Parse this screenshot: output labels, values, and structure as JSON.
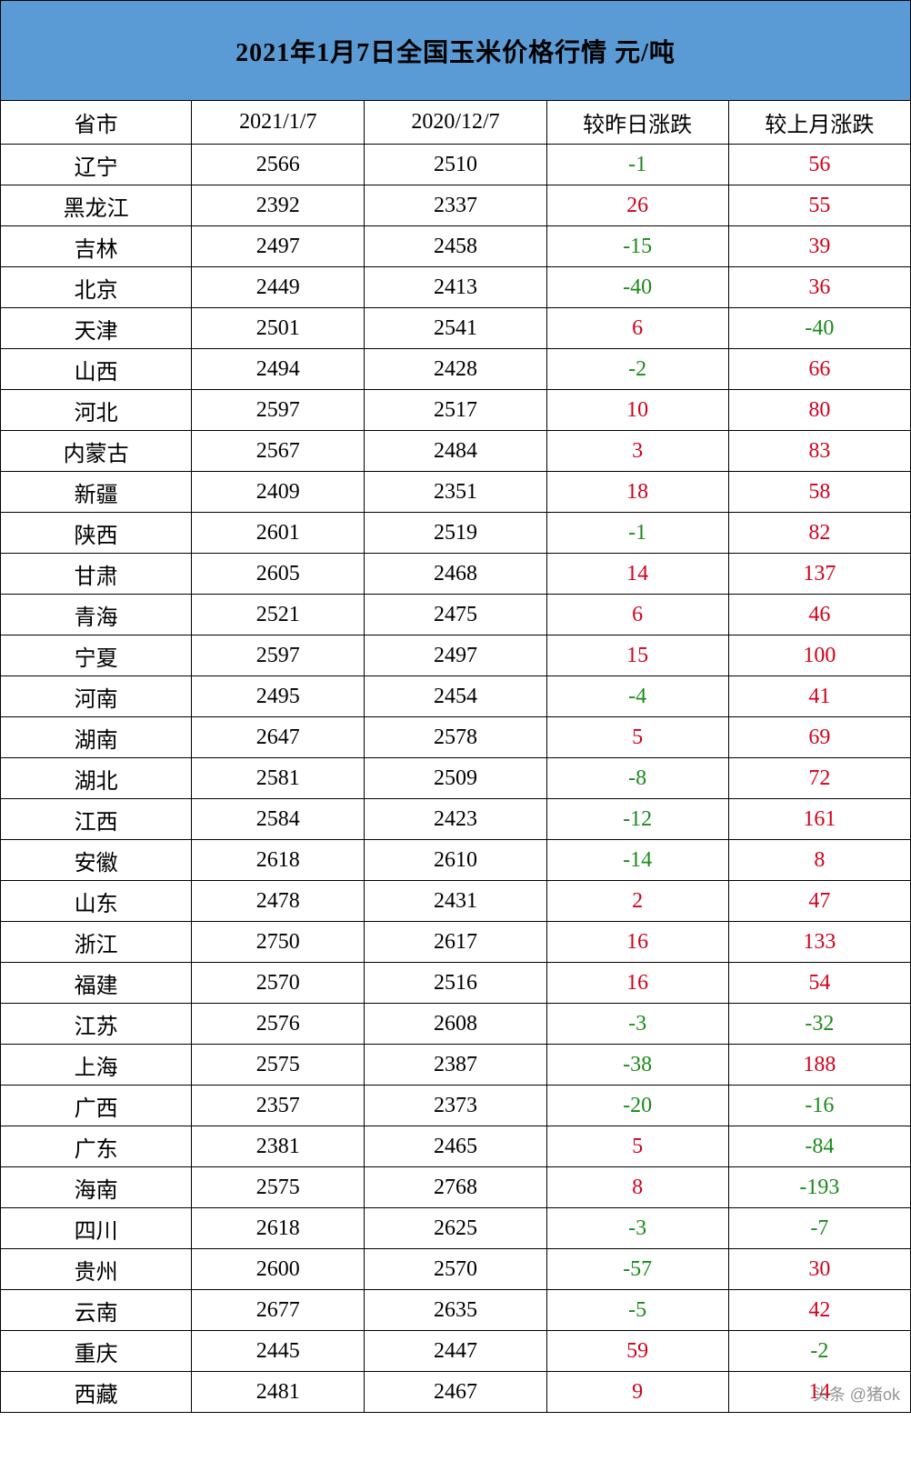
{
  "title": "2021年1月7日全国玉米价格行情  元/吨",
  "columns": [
    "省市",
    "2021/1/7",
    "2020/12/7",
    "较昨日涨跌",
    "较上月涨跌"
  ],
  "column_widths": [
    "21%",
    "19%",
    "20%",
    "20%",
    "20%"
  ],
  "colors": {
    "header_bg": "#5b9bd5",
    "positive": "#d0021b",
    "negative": "#1a8a1a",
    "text": "#000000",
    "border": "#000000",
    "background": "#ffffff"
  },
  "font": {
    "family": "SimSun",
    "title_size": 28,
    "header_size": 24,
    "cell_size": 24
  },
  "rows": [
    {
      "p": "辽宁",
      "a": "2566",
      "b": "2510",
      "d": "-1",
      "m": "56"
    },
    {
      "p": "黑龙江",
      "a": "2392",
      "b": "2337",
      "d": "26",
      "m": "55"
    },
    {
      "p": "吉林",
      "a": "2497",
      "b": "2458",
      "d": "-15",
      "m": "39"
    },
    {
      "p": "北京",
      "a": "2449",
      "b": "2413",
      "d": "-40",
      "m": "36"
    },
    {
      "p": "天津",
      "a": "2501",
      "b": "2541",
      "d": "6",
      "m": "-40"
    },
    {
      "p": "山西",
      "a": "2494",
      "b": "2428",
      "d": "-2",
      "m": "66"
    },
    {
      "p": "河北",
      "a": "2597",
      "b": "2517",
      "d": "10",
      "m": "80"
    },
    {
      "p": "内蒙古",
      "a": "2567",
      "b": "2484",
      "d": "3",
      "m": "83"
    },
    {
      "p": "新疆",
      "a": "2409",
      "b": "2351",
      "d": "18",
      "m": "58"
    },
    {
      "p": "陕西",
      "a": "2601",
      "b": "2519",
      "d": "-1",
      "m": "82"
    },
    {
      "p": "甘肃",
      "a": "2605",
      "b": "2468",
      "d": "14",
      "m": "137"
    },
    {
      "p": "青海",
      "a": "2521",
      "b": "2475",
      "d": "6",
      "m": "46"
    },
    {
      "p": "宁夏",
      "a": "2597",
      "b": "2497",
      "d": "15",
      "m": "100"
    },
    {
      "p": "河南",
      "a": "2495",
      "b": "2454",
      "d": "-4",
      "m": "41"
    },
    {
      "p": "湖南",
      "a": "2647",
      "b": "2578",
      "d": "5",
      "m": "69"
    },
    {
      "p": "湖北",
      "a": "2581",
      "b": "2509",
      "d": "-8",
      "m": "72"
    },
    {
      "p": "江西",
      "a": "2584",
      "b": "2423",
      "d": "-12",
      "m": "161"
    },
    {
      "p": "安徽",
      "a": "2618",
      "b": "2610",
      "d": "-14",
      "m": "8"
    },
    {
      "p": "山东",
      "a": "2478",
      "b": "2431",
      "d": "2",
      "m": "47"
    },
    {
      "p": "浙江",
      "a": "2750",
      "b": "2617",
      "d": "16",
      "m": "133"
    },
    {
      "p": "福建",
      "a": "2570",
      "b": "2516",
      "d": "16",
      "m": "54"
    },
    {
      "p": "江苏",
      "a": "2576",
      "b": "2608",
      "d": "-3",
      "m": "-32"
    },
    {
      "p": "上海",
      "a": "2575",
      "b": "2387",
      "d": "-38",
      "m": "188"
    },
    {
      "p": "广西",
      "a": "2357",
      "b": "2373",
      "d": "-20",
      "m": "-16"
    },
    {
      "p": "广东",
      "a": "2381",
      "b": "2465",
      "d": "5",
      "m": "-84"
    },
    {
      "p": "海南",
      "a": "2575",
      "b": "2768",
      "d": "8",
      "m": "-193"
    },
    {
      "p": "四川",
      "a": "2618",
      "b": "2625",
      "d": "-3",
      "m": "-7"
    },
    {
      "p": "贵州",
      "a": "2600",
      "b": "2570",
      "d": "-57",
      "m": "30"
    },
    {
      "p": "云南",
      "a": "2677",
      "b": "2635",
      "d": "-5",
      "m": "42"
    },
    {
      "p": "重庆",
      "a": "2445",
      "b": "2447",
      "d": "59",
      "m": "-2"
    },
    {
      "p": "西藏",
      "a": "2481",
      "b": "2467",
      "d": "9",
      "m": "14"
    }
  ],
  "watermark": "头条 @猪ok"
}
